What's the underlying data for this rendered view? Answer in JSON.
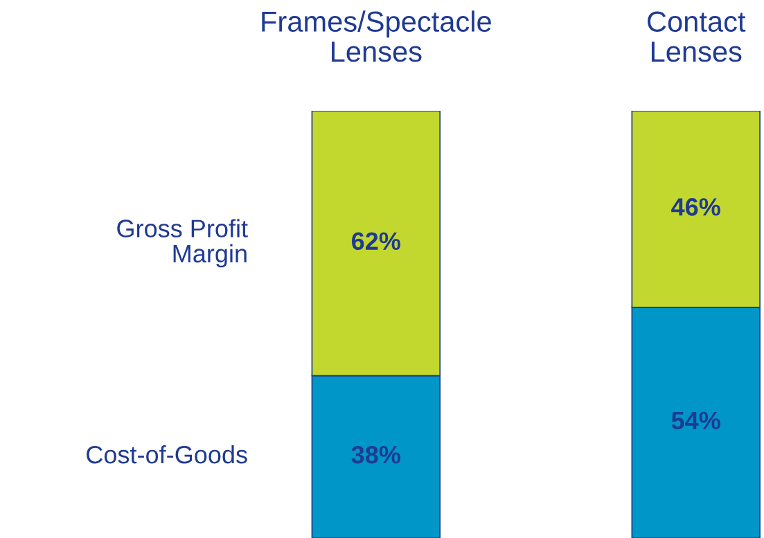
{
  "chart_data": {
    "type": "bar",
    "stacked": true,
    "categories": [
      "Frames/Spectacle\nLenses",
      "Contact\nLenses"
    ],
    "ylim": [
      0,
      100
    ],
    "series": [
      {
        "name": "Cost-of-Goods",
        "color": "#0096c8",
        "values": [
          38,
          54
        ],
        "value_labels": [
          "38%",
          "54%"
        ]
      },
      {
        "name": "Gross Profit\nMargin",
        "color": "#c2d82e",
        "values": [
          62,
          46
        ],
        "value_labels": [
          "62%",
          "46%"
        ]
      }
    ],
    "legend": false
  }
}
